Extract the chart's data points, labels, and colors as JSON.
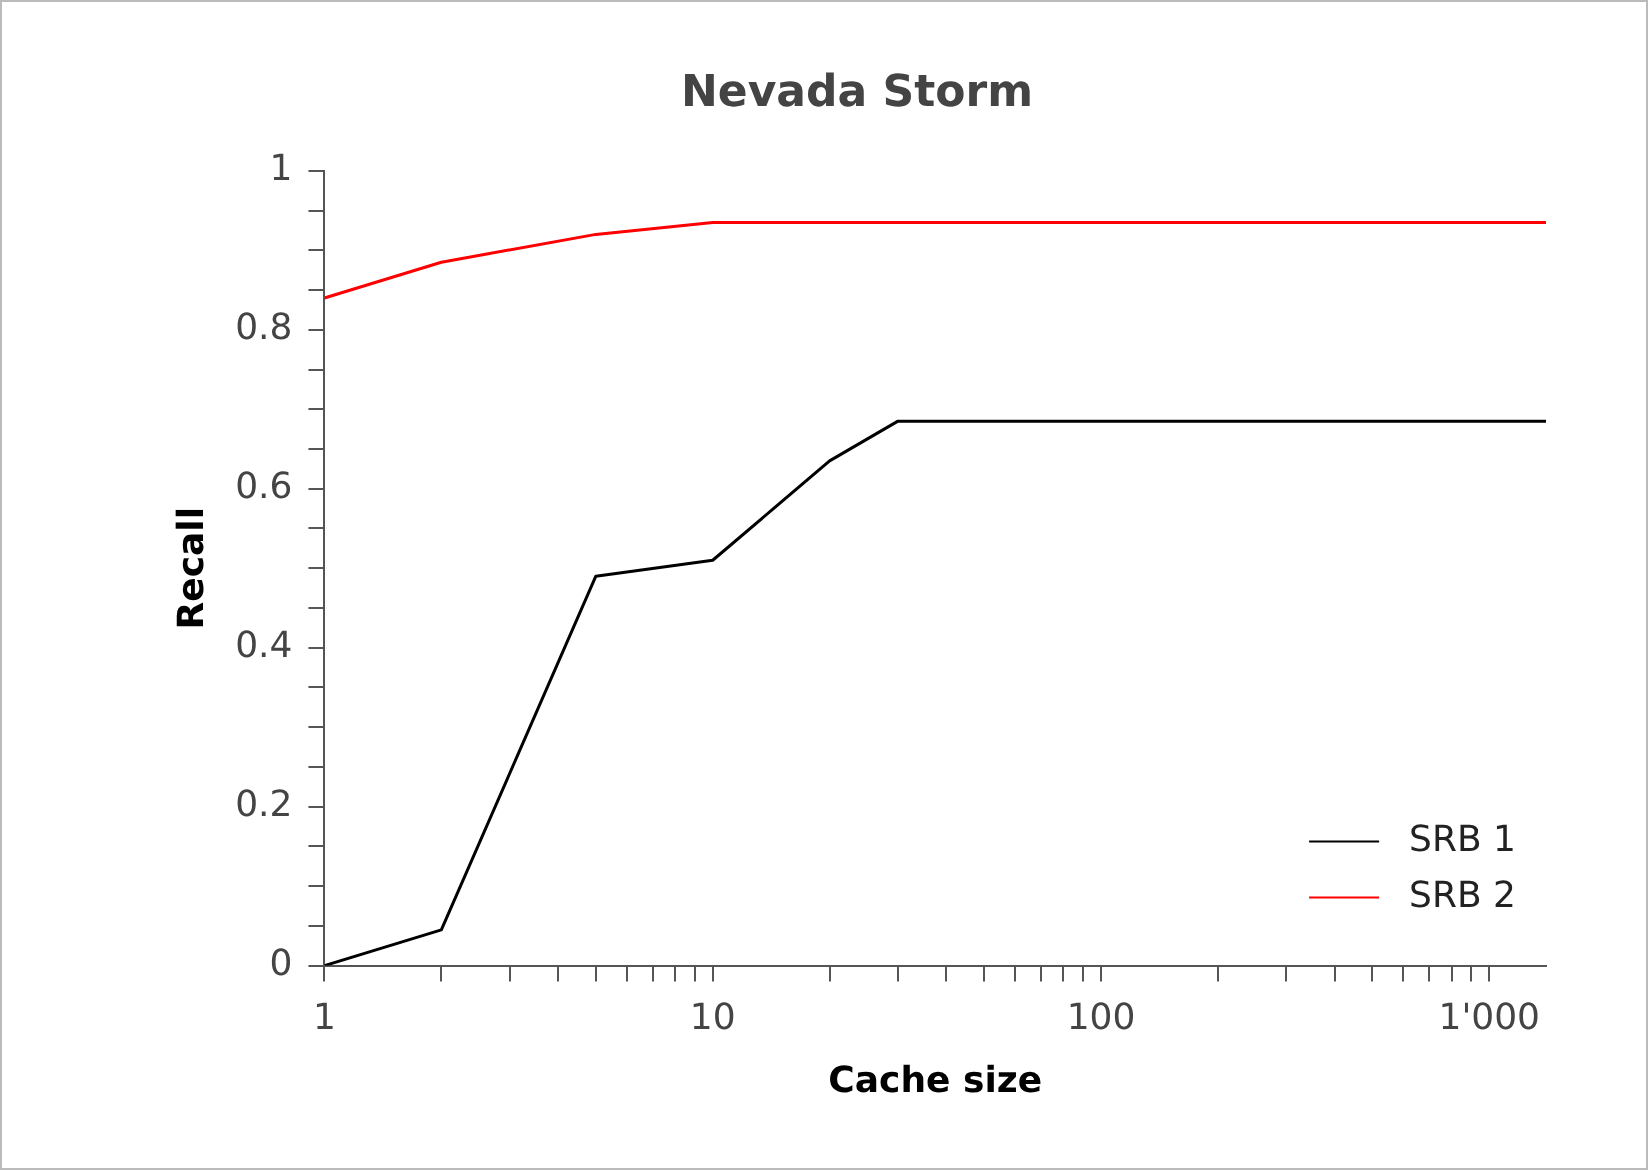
{
  "chart_data": {
    "type": "line",
    "title": "Nevada Storm",
    "xlabel": "Cache size",
    "ylabel": "Recall",
    "log": "x",
    "xlim": [
      1,
      1400
    ],
    "xticks": [
      1,
      {
        "value": 2,
        "label": null
      },
      {
        "value": 3,
        "label": null
      },
      {
        "value": 4,
        "label": null
      },
      {
        "value": 5,
        "label": null
      },
      {
        "value": 6,
        "label": null
      },
      {
        "value": 7,
        "label": null
      },
      {
        "value": 8,
        "label": null
      },
      {
        "value": 9,
        "label": null
      },
      10,
      {
        "value": 20,
        "label": null
      },
      {
        "value": 30,
        "label": null
      },
      {
        "value": 40,
        "label": null
      },
      {
        "value": 50,
        "label": null
      },
      {
        "value": 60,
        "label": null
      },
      {
        "value": 70,
        "label": null
      },
      {
        "value": 80,
        "label": null
      },
      {
        "value": 90,
        "label": null
      },
      100,
      {
        "value": 200,
        "label": null
      },
      {
        "value": 300,
        "label": null
      },
      {
        "value": 400,
        "label": null
      },
      {
        "value": 500,
        "label": null
      },
      {
        "value": 600,
        "label": null
      },
      {
        "value": 700,
        "label": null
      },
      {
        "value": 800,
        "label": null
      },
      {
        "value": 900,
        "label": null
      },
      {
        "value": 1000,
        "label": "1'000"
      }
    ],
    "ylim": [
      0,
      1
    ],
    "yticks": [
      0,
      {
        "value": 0.05,
        "label": null
      },
      {
        "value": 0.1,
        "label": null
      },
      {
        "value": 0.15,
        "label": null
      },
      0.2,
      {
        "value": 0.25,
        "label": null
      },
      {
        "value": 0.3,
        "label": null
      },
      {
        "value": 0.35,
        "label": null
      },
      0.4,
      {
        "value": 0.45,
        "label": null
      },
      {
        "value": 0.5,
        "label": null
      },
      {
        "value": 0.55,
        "label": null
      },
      0.6,
      {
        "value": 0.65,
        "label": null
      },
      {
        "value": 0.7,
        "label": null
      },
      {
        "value": 0.75,
        "label": null
      },
      0.8,
      {
        "value": 0.85,
        "label": null
      },
      {
        "value": 0.9,
        "label": null
      },
      {
        "value": 0.95,
        "label": null
      },
      1
    ],
    "grid": false,
    "legend": "bottom right",
    "marker": "none",
    "line_style": "solid",
    "series": [
      {
        "name": "SRB 1",
        "color": "#000000",
        "x": [
          1,
          2,
          5,
          10,
          20,
          30,
          1400
        ],
        "values": [
          0,
          0.045,
          0.49,
          0.51,
          0.635,
          0.685,
          0.685
        ]
      },
      {
        "name": "SRB 2",
        "color": "#ff0000",
        "x": [
          1,
          2,
          5,
          10,
          1400
        ],
        "values": [
          0.84,
          0.885,
          0.92,
          0.935,
          0.935
        ]
      }
    ]
  }
}
